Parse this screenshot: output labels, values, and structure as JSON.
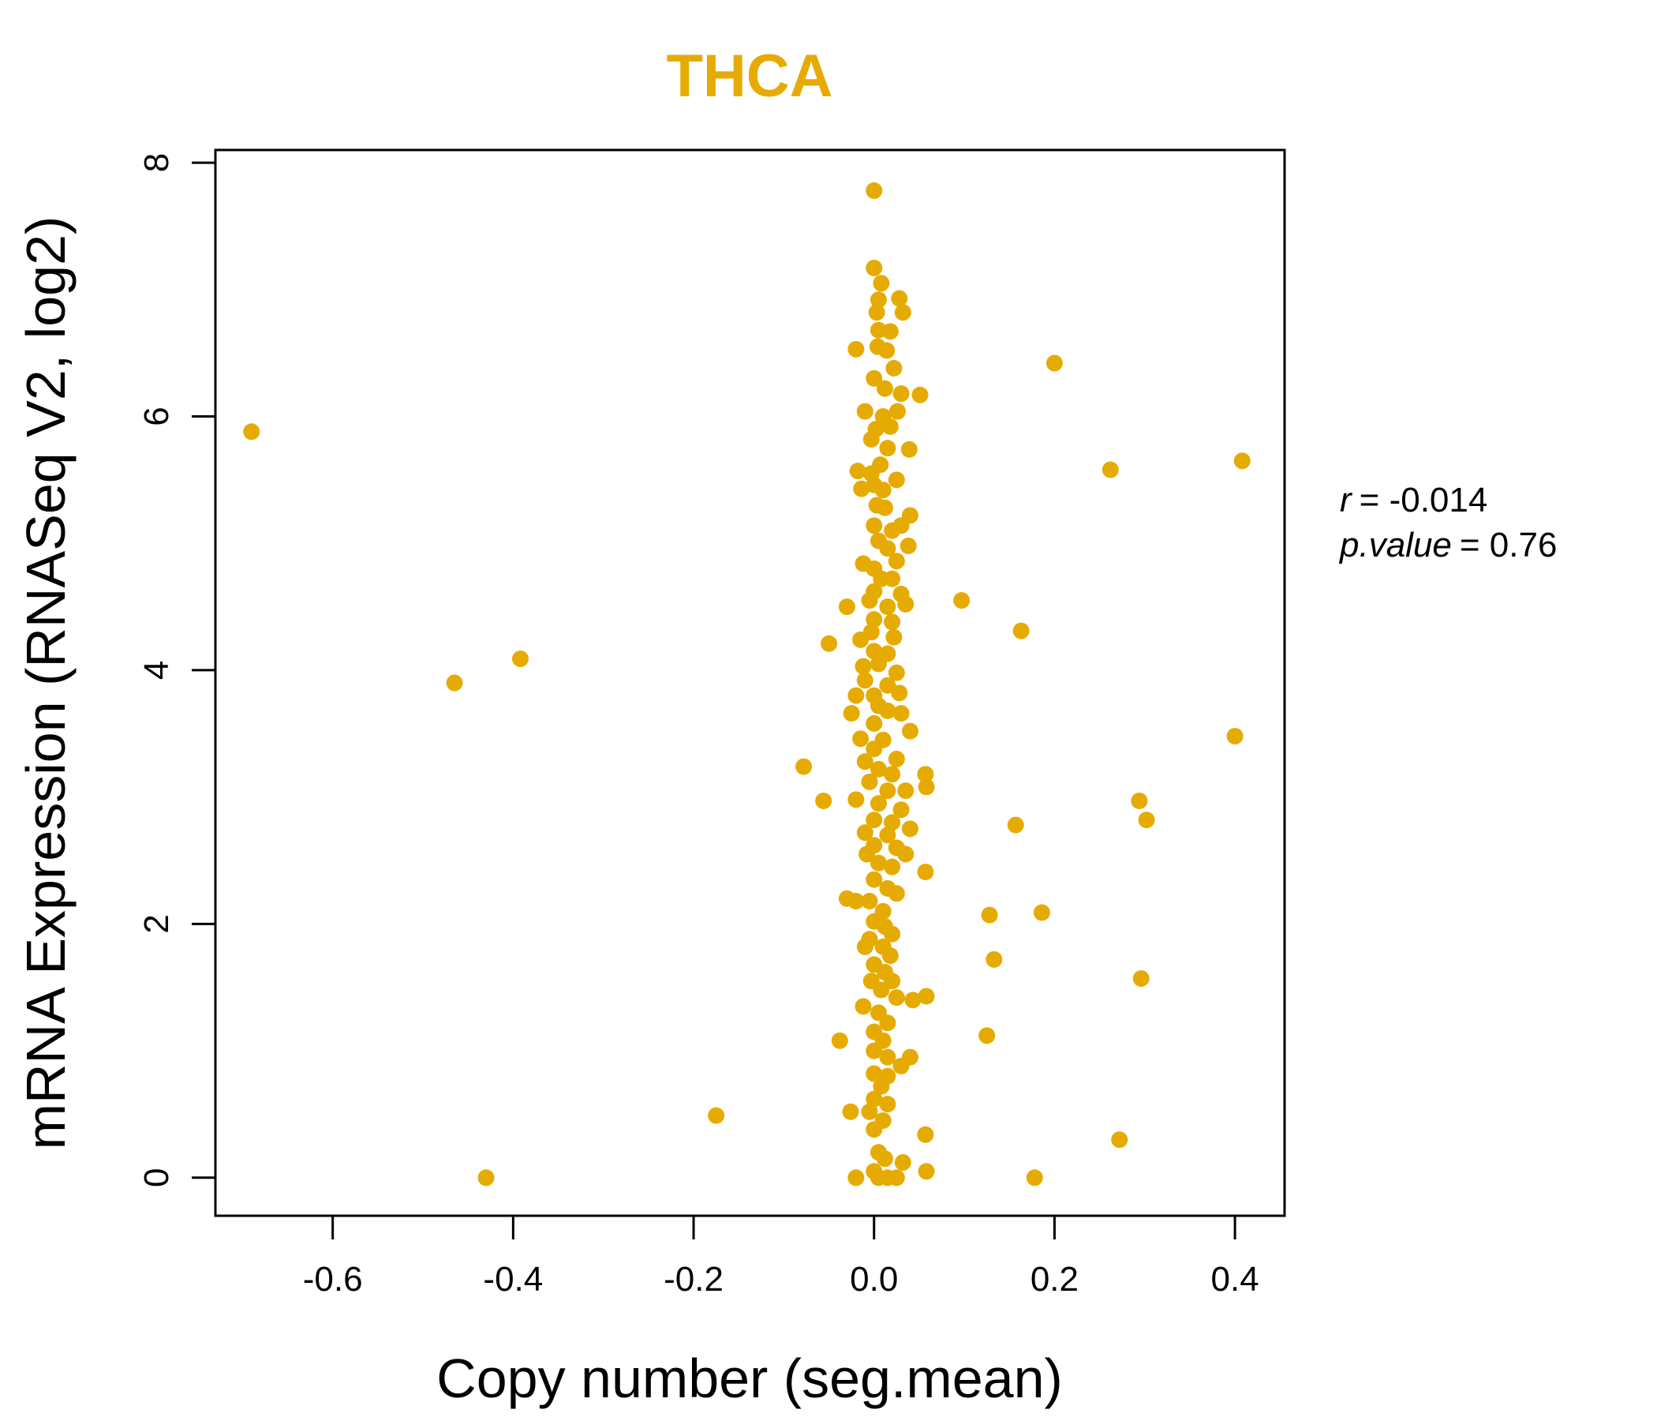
{
  "chart_data": {
    "type": "scatter",
    "title": "THCA",
    "xlabel": "Copy number (seg.mean)",
    "ylabel": "mRNA Expression (RNASeq V2, log2)",
    "xlim": [
      -0.73,
      0.455
    ],
    "ylim": [
      -0.3,
      8.1
    ],
    "x_ticks": [
      -0.6,
      -0.4,
      -0.2,
      0.0,
      0.2,
      0.4
    ],
    "x_tick_labels": [
      "-0.6",
      "-0.4",
      "-0.2",
      "0.0",
      "0.2",
      "0.4"
    ],
    "y_ticks": [
      0,
      2,
      4,
      6,
      8
    ],
    "y_tick_labels": [
      "0",
      "2",
      "4",
      "6",
      "8"
    ],
    "point_color": "#E6AB02",
    "series": [
      {
        "name": "samples",
        "points": [
          [
            -0.69,
            5.88
          ],
          [
            -0.465,
            3.9
          ],
          [
            -0.392,
            4.09
          ],
          [
            -0.43,
            0.0
          ],
          [
            -0.175,
            0.49
          ],
          [
            -0.078,
            3.24
          ],
          [
            -0.056,
            2.97
          ],
          [
            -0.05,
            4.21
          ],
          [
            -0.038,
            1.08
          ],
          [
            -0.03,
            4.5
          ],
          [
            -0.03,
            2.2
          ],
          [
            -0.026,
            0.52
          ],
          [
            -0.02,
            6.53
          ],
          [
            -0.018,
            5.57
          ],
          [
            -0.02,
            2.18
          ],
          [
            -0.02,
            0.0
          ],
          [
            0.0,
            7.78
          ],
          [
            0.0,
            7.17
          ],
          [
            0.008,
            7.05
          ],
          [
            0.005,
            6.92
          ],
          [
            0.028,
            6.93
          ],
          [
            0.032,
            6.82
          ],
          [
            0.003,
            6.82
          ],
          [
            0.005,
            6.68
          ],
          [
            0.018,
            6.67
          ],
          [
            0.004,
            6.55
          ],
          [
            0.014,
            6.52
          ],
          [
            0.022,
            6.38
          ],
          [
            0.0,
            6.3
          ],
          [
            0.012,
            6.22
          ],
          [
            0.03,
            6.18
          ],
          [
            0.051,
            6.17
          ],
          [
            -0.01,
            6.04
          ],
          [
            0.01,
            6.0
          ],
          [
            0.026,
            6.04
          ],
          [
            0.002,
            5.9
          ],
          [
            0.018,
            5.92
          ],
          [
            -0.003,
            5.82
          ],
          [
            0.015,
            5.75
          ],
          [
            0.039,
            5.74
          ],
          [
            0.007,
            5.62
          ],
          [
            0.025,
            5.5
          ],
          [
            -0.003,
            5.55
          ],
          [
            0.0,
            5.46
          ],
          [
            0.01,
            5.42
          ],
          [
            -0.014,
            5.43
          ],
          [
            0.003,
            5.3
          ],
          [
            0.012,
            5.28
          ],
          [
            0.04,
            5.22
          ],
          [
            0.0,
            5.14
          ],
          [
            0.02,
            5.1
          ],
          [
            0.03,
            5.14
          ],
          [
            0.005,
            5.02
          ],
          [
            0.015,
            4.96
          ],
          [
            0.038,
            4.98
          ],
          [
            -0.012,
            4.84
          ],
          [
            0.0,
            4.8
          ],
          [
            0.025,
            4.86
          ],
          [
            0.008,
            4.72
          ],
          [
            0.02,
            4.72
          ],
          [
            0.0,
            4.62
          ],
          [
            0.03,
            4.6
          ],
          [
            -0.005,
            4.55
          ],
          [
            0.015,
            4.5
          ],
          [
            0.035,
            4.52
          ],
          [
            0.0,
            4.4
          ],
          [
            0.02,
            4.38
          ],
          [
            -0.003,
            4.3
          ],
          [
            0.022,
            4.26
          ],
          [
            -0.015,
            4.24
          ],
          [
            0.0,
            4.15
          ],
          [
            0.015,
            4.13
          ],
          [
            0.005,
            4.05
          ],
          [
            -0.012,
            4.03
          ],
          [
            0.025,
            3.98
          ],
          [
            -0.01,
            3.92
          ],
          [
            0.015,
            3.88
          ],
          [
            0.0,
            3.8
          ],
          [
            -0.02,
            3.8
          ],
          [
            0.028,
            3.82
          ],
          [
            0.005,
            3.72
          ],
          [
            0.015,
            3.68
          ],
          [
            -0.025,
            3.66
          ],
          [
            0.03,
            3.66
          ],
          [
            0.0,
            3.58
          ],
          [
            0.04,
            3.52
          ],
          [
            -0.015,
            3.46
          ],
          [
            0.01,
            3.45
          ],
          [
            0.0,
            3.38
          ],
          [
            0.025,
            3.3
          ],
          [
            -0.01,
            3.28
          ],
          [
            0.005,
            3.22
          ],
          [
            0.02,
            3.18
          ],
          [
            0.057,
            3.18
          ],
          [
            0.058,
            3.08
          ],
          [
            -0.005,
            3.12
          ],
          [
            0.015,
            3.05
          ],
          [
            0.035,
            3.05
          ],
          [
            -0.02,
            2.98
          ],
          [
            0.005,
            2.95
          ],
          [
            0.03,
            2.9
          ],
          [
            0.0,
            2.82
          ],
          [
            0.02,
            2.8
          ],
          [
            0.04,
            2.75
          ],
          [
            -0.01,
            2.72
          ],
          [
            0.015,
            2.7
          ],
          [
            0.0,
            2.62
          ],
          [
            0.025,
            2.6
          ],
          [
            -0.008,
            2.55
          ],
          [
            0.035,
            2.55
          ],
          [
            0.005,
            2.48
          ],
          [
            0.02,
            2.45
          ],
          [
            0.057,
            2.41
          ],
          [
            0.0,
            2.35
          ],
          [
            0.015,
            2.28
          ],
          [
            0.025,
            2.24
          ],
          [
            -0.005,
            2.18
          ],
          [
            0.01,
            2.1
          ],
          [
            0.0,
            2.02
          ],
          [
            0.012,
            1.98
          ],
          [
            0.02,
            1.92
          ],
          [
            -0.005,
            1.88
          ],
          [
            0.01,
            1.82
          ],
          [
            -0.01,
            1.82
          ],
          [
            0.018,
            1.75
          ],
          [
            0.0,
            1.68
          ],
          [
            0.012,
            1.62
          ],
          [
            -0.003,
            1.55
          ],
          [
            0.02,
            1.55
          ],
          [
            0.008,
            1.48
          ],
          [
            0.025,
            1.42
          ],
          [
            0.043,
            1.4
          ],
          [
            0.058,
            1.43
          ],
          [
            -0.012,
            1.35
          ],
          [
            0.005,
            1.3
          ],
          [
            0.015,
            1.22
          ],
          [
            0.0,
            1.15
          ],
          [
            0.01,
            1.08
          ],
          [
            0.0,
            1.0
          ],
          [
            0.015,
            0.95
          ],
          [
            0.04,
            0.95
          ],
          [
            0.03,
            0.88
          ],
          [
            0.0,
            0.82
          ],
          [
            0.015,
            0.8
          ],
          [
            0.008,
            0.72
          ],
          [
            0.0,
            0.62
          ],
          [
            0.015,
            0.58
          ],
          [
            -0.005,
            0.52
          ],
          [
            0.01,
            0.45
          ],
          [
            0.0,
            0.38
          ],
          [
            0.005,
            0.2
          ],
          [
            0.012,
            0.15
          ],
          [
            0.0,
            0.05
          ],
          [
            0.015,
            0.0
          ],
          [
            0.025,
            0.0
          ],
          [
            0.005,
            0.0
          ],
          [
            0.032,
            0.12
          ],
          [
            0.057,
            0.34
          ],
          [
            0.058,
            0.05
          ],
          [
            0.097,
            4.55
          ],
          [
            0.125,
            1.12
          ],
          [
            0.128,
            2.07
          ],
          [
            0.133,
            1.72
          ],
          [
            0.157,
            2.78
          ],
          [
            0.163,
            4.31
          ],
          [
            0.178,
            0.0
          ],
          [
            0.186,
            2.09
          ],
          [
            0.2,
            6.42
          ],
          [
            0.262,
            5.58
          ],
          [
            0.272,
            0.3
          ],
          [
            0.294,
            2.97
          ],
          [
            0.296,
            1.57
          ],
          [
            0.302,
            2.82
          ],
          [
            0.4,
            3.48
          ],
          [
            0.408,
            5.65
          ]
        ]
      }
    ],
    "annotation": {
      "r_label": "r",
      "r_value": "= -0.014",
      "p_label": "p.value",
      "p_value": "= 0.76"
    }
  }
}
